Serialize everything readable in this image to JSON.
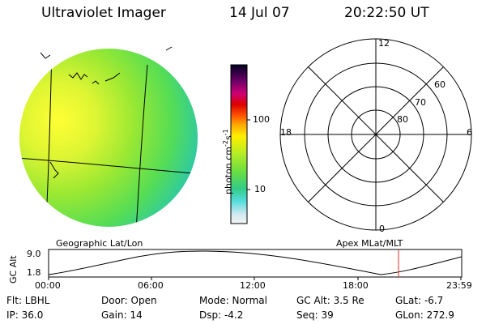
{
  "header": {
    "title": "Ultraviolet Imager",
    "date": "14 Jul 07",
    "time": "20:22:50 UT"
  },
  "colorbar": {
    "unit": "photon cm",
    "unit_exp1": "-2",
    "unit_mid": "s",
    "unit_exp2": "-1",
    "ticks": [
      "100",
      "10"
    ]
  },
  "polar_plot": {
    "mlt_labels": {
      "top": "12",
      "left": "18",
      "right": "6",
      "bottom": "0"
    },
    "lat_labels": [
      "60",
      "70",
      "80"
    ]
  },
  "projection_labels": {
    "left": "Geographic Lat/Lon",
    "right": "Apex MLat/MLT"
  },
  "altitude_panel": {
    "ylabel_prefix": "GC",
    "ylabel_suffix": "Alt",
    "yticks": [
      "9.0",
      "1.8"
    ],
    "xticks": [
      "00:00",
      "06:00",
      "12:00",
      "18:00",
      "23:59"
    ],
    "current_marker_color": "#e03020"
  },
  "status": {
    "filter": "Flt: LBHL",
    "door": "Door: Open",
    "mode": "Mode: Normal",
    "gc_alt": "GC Alt: 3.5 Re",
    "glat": "GLat: -6.7",
    "ip": "IP: 36.0",
    "gain": "Gain: 14",
    "dsp": "Dsp:  -4.2",
    "seq": "Seq: 39",
    "glon": "GLon: 272.9"
  }
}
